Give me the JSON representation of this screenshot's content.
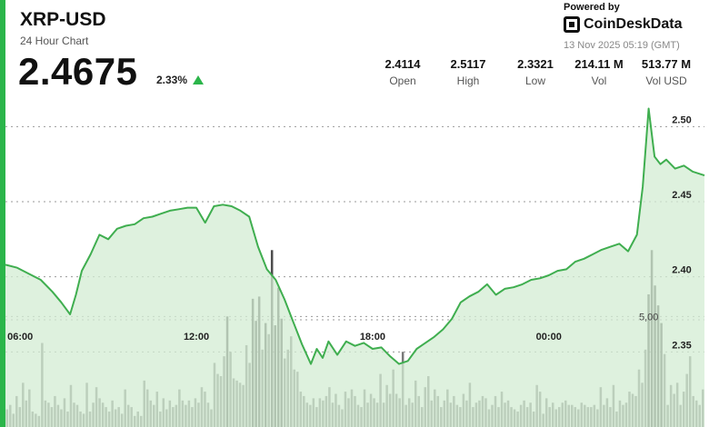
{
  "header": {
    "symbol": "XRP-USD",
    "subtitle": "24 Hour Chart",
    "price": "2.4675",
    "change": "2.33%",
    "change_direction": "up",
    "powered_by": "Powered by",
    "brand": "CoinDeskData",
    "brand_icon": "coindesk-logo-icon",
    "timestamp": "13 Nov 2025 05:19 (GMT)"
  },
  "stats": [
    {
      "value": "2.4114",
      "label": "Open"
    },
    {
      "value": "2.5117",
      "label": "High"
    },
    {
      "value": "2.3321",
      "label": "Low"
    },
    {
      "value": "214.11 M",
      "label": "Vol"
    },
    {
      "value": "513.77 M",
      "label": "Vol USD"
    }
  ],
  "colors": {
    "line": "#3fae4f",
    "area": "#d3ecd3",
    "volume_bar": "#6a6a6a",
    "volume_bar_highlight": "#3a3a3a",
    "accent": "#2bb54a",
    "grid": "#9a9a9a"
  },
  "chart_data": {
    "type": "line",
    "title": "",
    "xlabel": "",
    "ylabel": "",
    "x_ticks": [
      "06:00",
      "12:00",
      "18:00",
      "00:00"
    ],
    "x_tick_hours": [
      6,
      12,
      18,
      24
    ],
    "x_range_hours": [
      5.5,
      29.3
    ],
    "y_ticks": [
      2.35,
      2.4,
      2.45,
      2.5
    ],
    "ylim": [
      2.3,
      2.525
    ],
    "volume_tick_label": "5,00",
    "volume_tick_value": 5000000,
    "volume_max": 8300000,
    "grid": "horizontal-dashed",
    "price_series": {
      "name": "",
      "x_hours": [
        5.5,
        5.9,
        6.3,
        6.7,
        7.1,
        7.4,
        7.7,
        7.9,
        8.1,
        8.4,
        8.7,
        9.0,
        9.3,
        9.6,
        9.9,
        10.2,
        10.5,
        10.8,
        11.1,
        11.4,
        11.7,
        12.0,
        12.3,
        12.6,
        12.9,
        13.2,
        13.5,
        13.8,
        14.1,
        14.4,
        14.7,
        15.0,
        15.3,
        15.6,
        15.9,
        16.1,
        16.3,
        16.5,
        16.8,
        17.1,
        17.4,
        17.7,
        18.0,
        18.3,
        18.6,
        18.9,
        19.2,
        19.5,
        19.8,
        20.1,
        20.4,
        20.7,
        21.0,
        21.3,
        21.6,
        21.9,
        22.2,
        22.5,
        22.8,
        23.1,
        23.4,
        23.7,
        24.0,
        24.3,
        24.6,
        24.9,
        25.2,
        25.5,
        25.8,
        26.1,
        26.4,
        26.7,
        27.0,
        27.2,
        27.4,
        27.6,
        27.8,
        28.0,
        28.3,
        28.6,
        28.9,
        29.3
      ],
      "y": [
        2.408,
        2.406,
        2.402,
        2.398,
        2.39,
        2.383,
        2.375,
        2.388,
        2.404,
        2.415,
        2.428,
        2.425,
        2.432,
        2.434,
        2.435,
        2.439,
        2.44,
        2.442,
        2.444,
        2.445,
        2.446,
        2.446,
        2.436,
        2.447,
        2.448,
        2.447,
        2.444,
        2.44,
        2.42,
        2.405,
        2.398,
        2.385,
        2.37,
        2.355,
        2.342,
        2.352,
        2.346,
        2.357,
        2.348,
        2.357,
        2.354,
        2.356,
        2.352,
        2.353,
        2.347,
        2.342,
        2.344,
        2.352,
        2.356,
        2.36,
        2.365,
        2.372,
        2.383,
        2.387,
        2.39,
        2.395,
        2.388,
        2.392,
        2.393,
        2.395,
        2.398,
        2.399,
        2.401,
        2.404,
        2.405,
        2.41,
        2.412,
        2.415,
        2.418,
        2.42,
        2.422,
        2.417,
        2.428,
        2.46,
        2.512,
        2.48,
        2.475,
        2.478,
        2.472,
        2.474,
        2.47,
        2.4675
      ]
    },
    "volume_series": {
      "name": "",
      "values": [
        0.8,
        1.0,
        0.6,
        1.4,
        0.9,
        2.0,
        1.2,
        1.7,
        0.7,
        0.6,
        0.5,
        3.8,
        1.2,
        1.1,
        0.9,
        1.4,
        1.0,
        0.8,
        1.3,
        0.7,
        1.9,
        1.1,
        1.0,
        0.7,
        0.6,
        2.0,
        0.7,
        1.1,
        1.8,
        1.3,
        1.1,
        0.9,
        0.7,
        1.2,
        0.8,
        0.9,
        0.6,
        1.7,
        1.0,
        0.9,
        0.5,
        0.7,
        0.5,
        2.1,
        1.7,
        1.2,
        1.0,
        1.6,
        0.7,
        1.3,
        0.8,
        1.2,
        0.9,
        1.0,
        1.7,
        1.2,
        1.0,
        1.2,
        0.9,
        1.3,
        1.1,
        1.8,
        1.6,
        1.1,
        0.8,
        2.9,
        2.4,
        2.3,
        3.2,
        5.0,
        3.4,
        2.2,
        2.1,
        2.0,
        1.9,
        3.7,
        2.9,
        5.8,
        4.8,
        5.9,
        3.5,
        4.7,
        4.2,
        8.0,
        4.6,
        6.3,
        4.9,
        3.1,
        3.5,
        4.1,
        2.6,
        2.5,
        1.6,
        1.4,
        1.1,
        1.0,
        1.3,
        0.9,
        1.3,
        1.2,
        1.4,
        1.8,
        1.1,
        1.5,
        1.0,
        0.8,
        1.6,
        1.3,
        1.7,
        1.4,
        1.0,
        0.9,
        1.7,
        1.1,
        1.5,
        1.3,
        1.1,
        2.4,
        1.1,
        1.9,
        1.5,
        2.6,
        1.5,
        1.3,
        3.4,
        1.0,
        1.3,
        1.1,
        2.1,
        1.4,
        0.9,
        1.8,
        2.3,
        1.2,
        1.7,
        1.4,
        0.9,
        1.2,
        1.7,
        1.1,
        1.4,
        1.0,
        0.9,
        1.5,
        1.2,
        2.0,
        0.9,
        1.1,
        1.2,
        1.4,
        1.3,
        0.8,
        1.0,
        1.4,
        0.9,
        1.6,
        1.1,
        1.2,
        0.9,
        0.8,
        0.7,
        1.0,
        1.2,
        0.9,
        1.1,
        0.7,
        1.9,
        1.6,
        0.6,
        1.3,
        0.9,
        1.1,
        0.8,
        0.9,
        1.1,
        1.2,
        1.0,
        1.0,
        0.9,
        0.8,
        1.1,
        1.0,
        0.9,
        0.9,
        1.0,
        0.8,
        1.8,
        1.0,
        1.3,
        0.9,
        1.9,
        0.7,
        1.2,
        1.0,
        1.1,
        1.6,
        1.5,
        1.4,
        2.6,
        2.0,
        3.5,
        6.0,
        8.0,
        6.4,
        5.5,
        4.7,
        3.3,
        1.0,
        1.9,
        1.5,
        2.0,
        1.0,
        1.6,
        2.4,
        3.2,
        1.4,
        1.2,
        1.0,
        1.7
      ]
    }
  }
}
